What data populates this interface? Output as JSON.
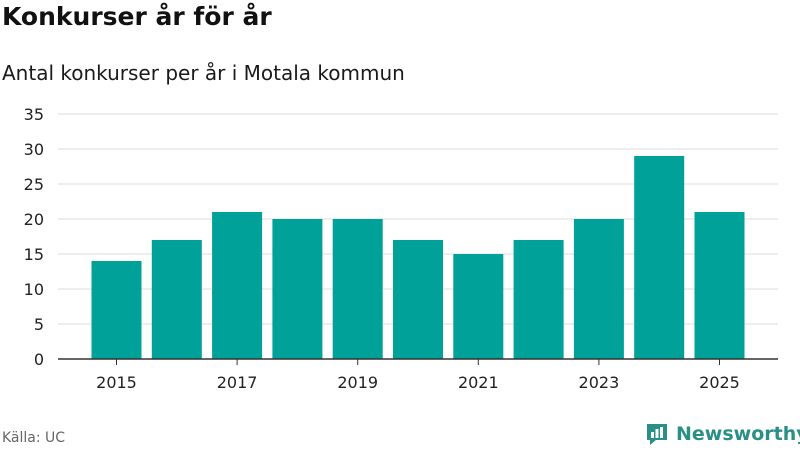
{
  "title": "Konkurser år för år",
  "subtitle": "Antal konkurser per år i Motala kommun",
  "source": "Källa: UC",
  "brand": {
    "name": "Newsworthy",
    "logo_icon": "bar-chart-logo-icon"
  },
  "colors": {
    "bar": "#00a199",
    "grid": "#dddddd",
    "axis": "#333333",
    "brand": "#2a8f86"
  },
  "chart_data": {
    "type": "bar",
    "title": "Konkurser år för år",
    "subtitle": "Antal konkurser per år i Motala kommun",
    "xlabel": "",
    "ylabel": "",
    "categories": [
      2015,
      2016,
      2017,
      2018,
      2019,
      2020,
      2021,
      2022,
      2023,
      2024,
      2025
    ],
    "values": [
      14,
      17,
      21,
      20,
      20,
      17,
      15,
      17,
      20,
      29,
      21
    ],
    "ylim": [
      0,
      35
    ],
    "yticks": [
      0,
      5,
      10,
      15,
      20,
      25,
      30,
      35
    ],
    "xtick_labels": [
      "2015",
      "2017",
      "2019",
      "2021",
      "2023",
      "2025"
    ],
    "grid": true,
    "legend": "none"
  }
}
